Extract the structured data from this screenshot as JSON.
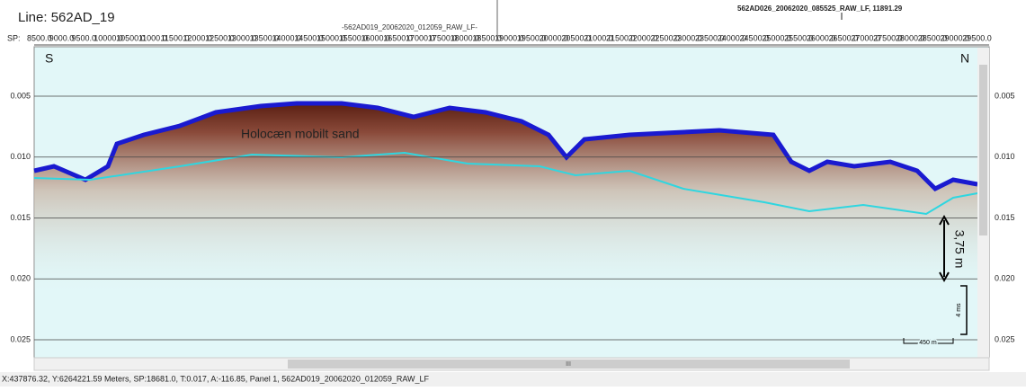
{
  "header": {
    "title": "Line: 562AD_19",
    "segment_right": "562AD026_20062020_085525_RAW_LF, 11891.29",
    "segment_center": "-562AD019_20062020_012059_RAW_LF-",
    "sp_prefix": "SP:",
    "sp_labels": [
      "8500.0",
      "9000.0",
      "9500.0",
      "10000.0",
      "10500.0",
      "11000.0",
      "11500.0",
      "12000.0",
      "12500.0",
      "13000.0",
      "13500.0",
      "14000.0",
      "14500.0",
      "15000.0",
      "15500.0",
      "16000.0",
      "16500.0",
      "17000.0",
      "17500.0",
      "18000.0",
      "18500.0",
      "19000.0",
      "19500.0",
      "20000.0",
      "20500.0",
      "21000.0",
      "21500.0",
      "22000.0",
      "22500.0",
      "23000.0",
      "23500.0",
      "24000.0",
      "24500.0",
      "25000.0",
      "25500.0",
      "26000.0",
      "26500.0",
      "27000.0",
      "27500.0",
      "28000.0",
      "28500.0",
      "29000.0",
      "29500.0"
    ]
  },
  "profile": {
    "left_end": "S",
    "right_end": "N",
    "time_labels": [
      "0.005",
      "0.010",
      "0.015",
      "0.020",
      "0.025"
    ],
    "annotation": "Holocæn mobilt sand",
    "thickness": "3,75 m",
    "vertical_scale": "4 ms",
    "horizontal_scale": "450 m"
  },
  "scrollbar": {
    "grip": "III"
  },
  "status": "X:437876.32, Y:6264221.59 Meters,  SP:18681.0,  T:0.017,  A:-116.85,  Panel 1,  562AD019_20062020_012059_RAW_LF"
}
